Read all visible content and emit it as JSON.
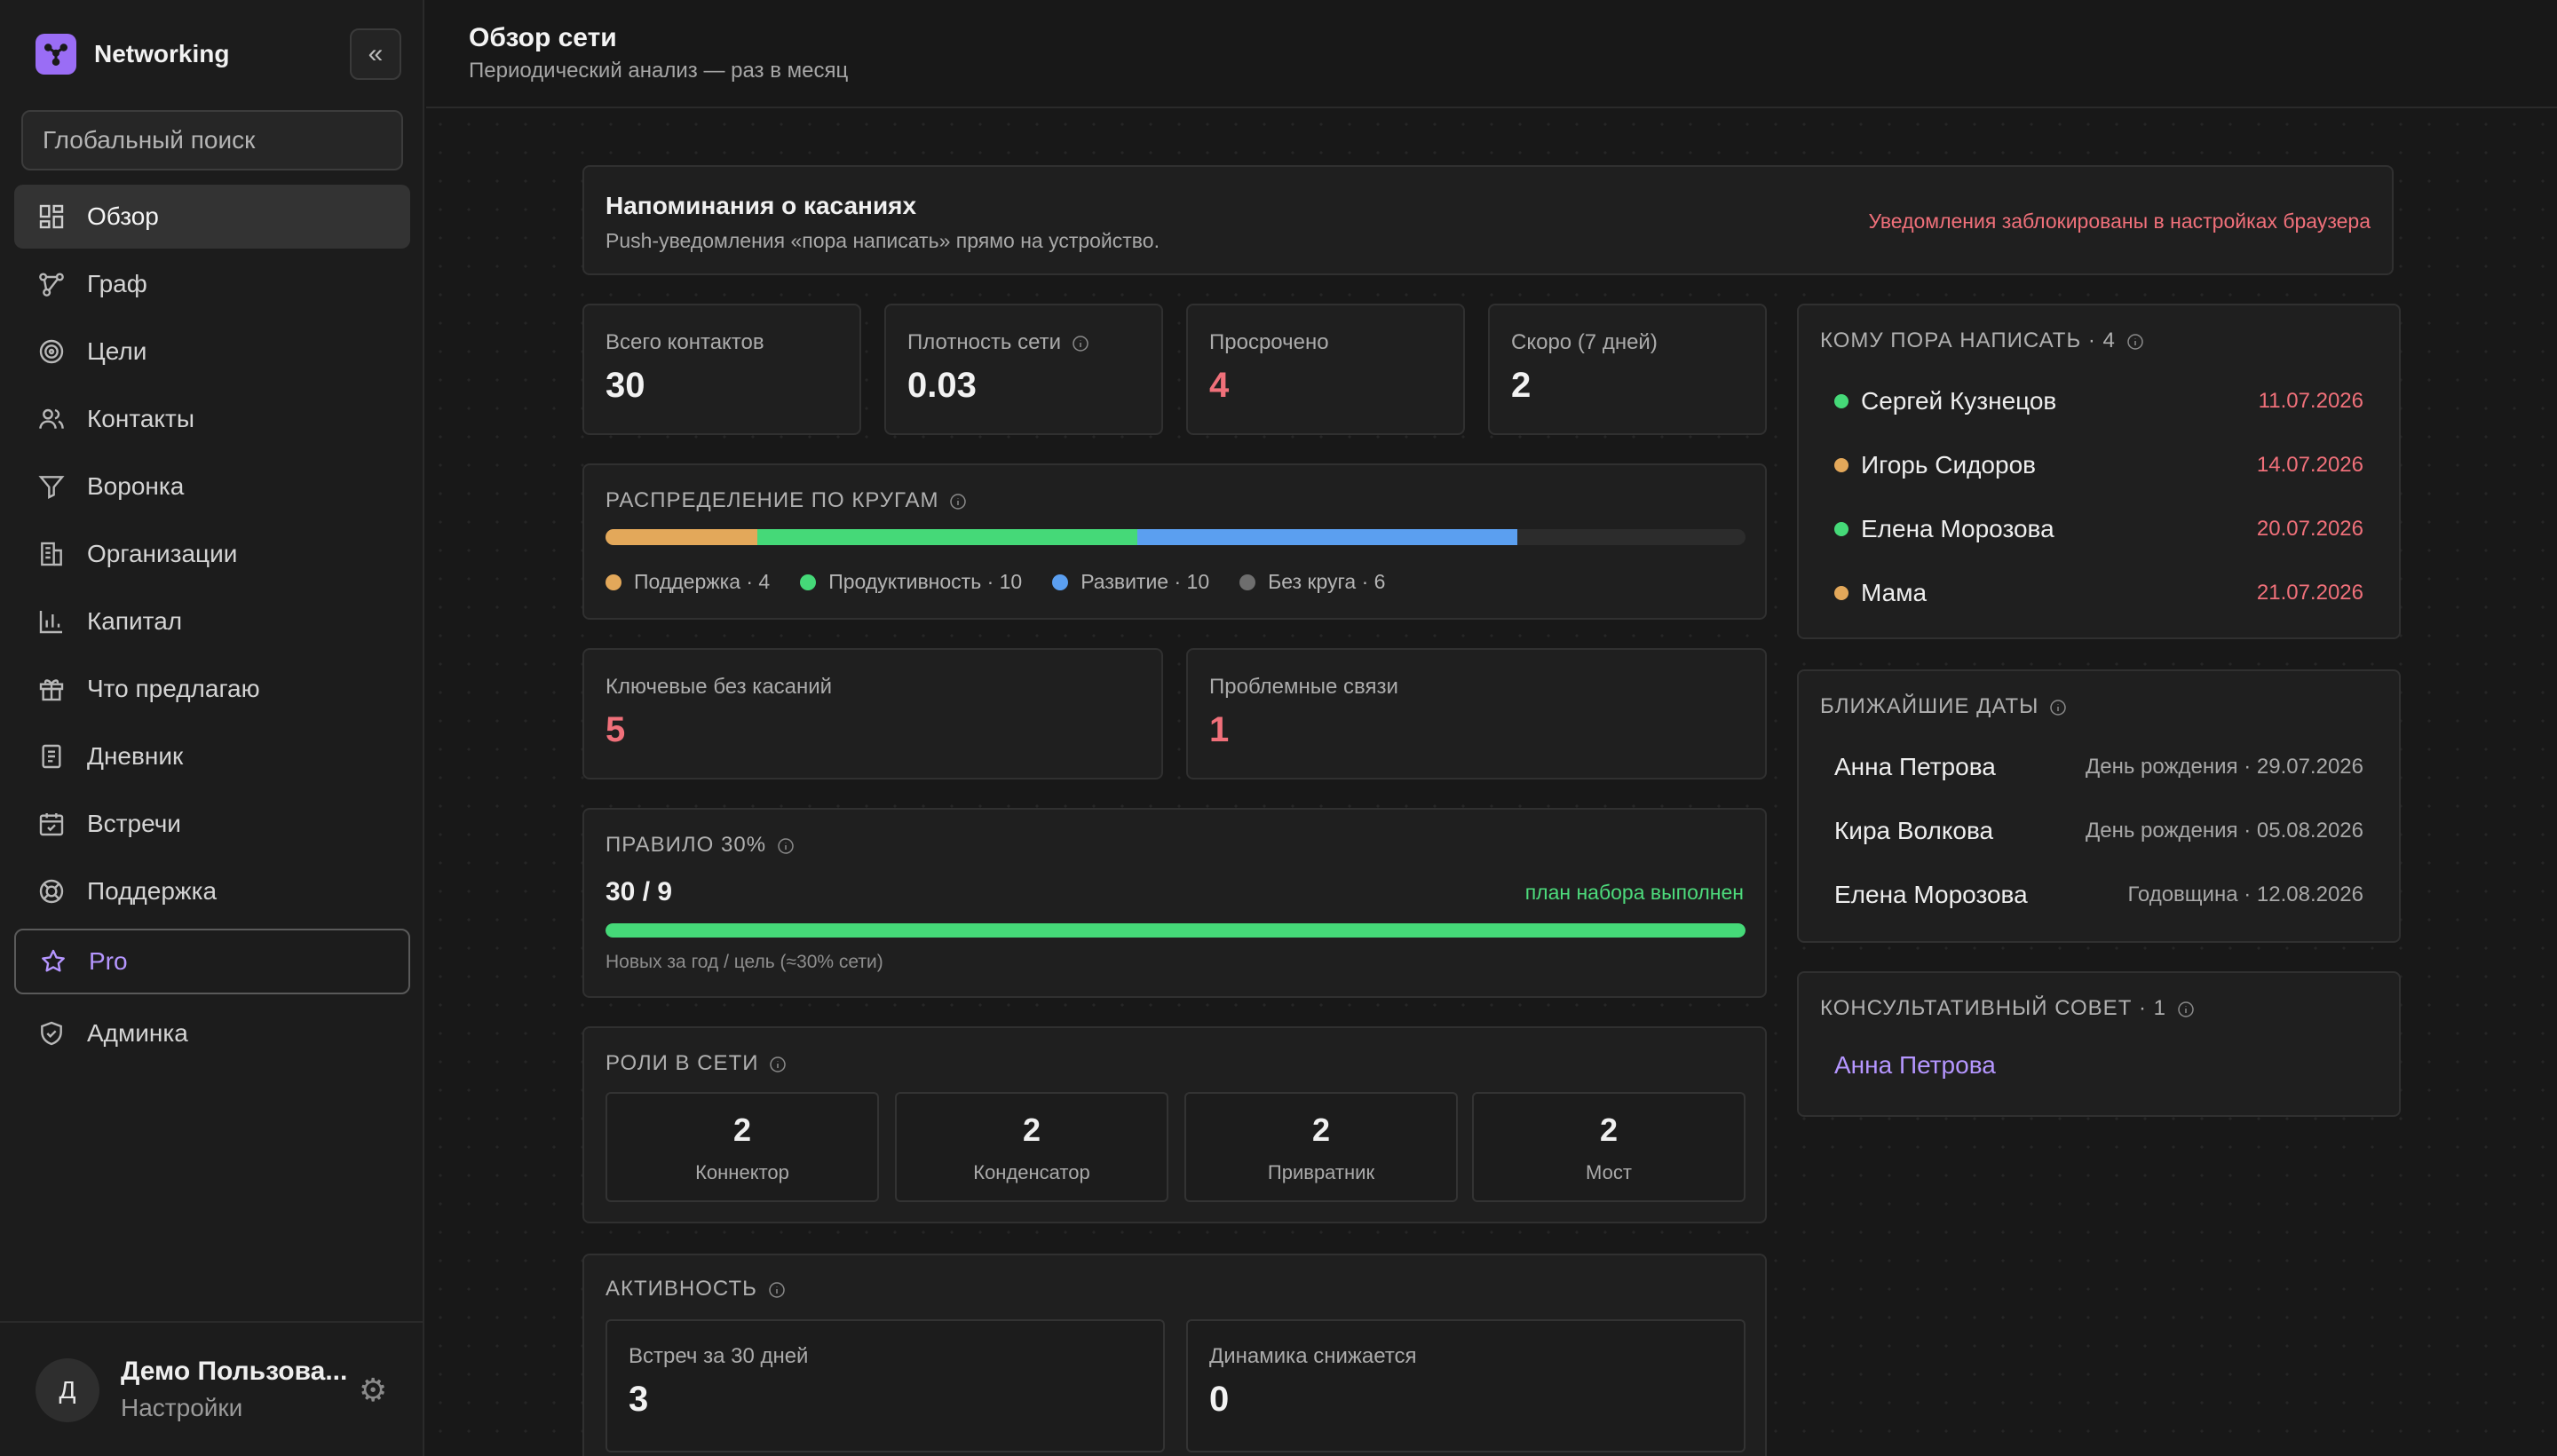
{
  "app": {
    "name": "Networking"
  },
  "search": {
    "placeholder": "Глобальный поиск"
  },
  "nav": {
    "items": [
      {
        "label": "Обзор",
        "icon": "dashboard-icon"
      },
      {
        "label": "Граф",
        "icon": "graph-icon"
      },
      {
        "label": "Цели",
        "icon": "target-icon"
      },
      {
        "label": "Контакты",
        "icon": "users-icon"
      },
      {
        "label": "Воронка",
        "icon": "funnel-icon"
      },
      {
        "label": "Организации",
        "icon": "building-icon"
      },
      {
        "label": "Капитал",
        "icon": "bar-chart-icon"
      },
      {
        "label": "Что предлагаю",
        "icon": "gift-icon"
      },
      {
        "label": "Дневник",
        "icon": "notebook-icon"
      },
      {
        "label": "Встречи",
        "icon": "calendar-check-icon"
      },
      {
        "label": "Поддержка",
        "icon": "lifebuoy-icon"
      },
      {
        "label": "Pro",
        "icon": "star-icon"
      },
      {
        "label": "Админка",
        "icon": "shield-check-icon"
      }
    ]
  },
  "user": {
    "avatar_letter": "Д",
    "name": "Демо Пользова...",
    "settings": "Настройки"
  },
  "header": {
    "title": "Обзор сети",
    "subtitle": "Периодический анализ — раз в месяц"
  },
  "reminders": {
    "title": "Напоминания о касаниях",
    "description": "Push-уведомления «пора написать» прямо на устройство.",
    "status": "Уведомления заблокированы в настройках браузера"
  },
  "stats": {
    "total": {
      "label": "Всего контактов",
      "value": "30"
    },
    "density": {
      "label": "Плотность сети",
      "value": "0.03"
    },
    "overdue": {
      "label": "Просрочено",
      "value": "4"
    },
    "soon": {
      "label": "Скоро (7 дней)",
      "value": "2"
    }
  },
  "circles": {
    "title": "РАСПРЕДЕЛЕНИЕ ПО КРУГАМ",
    "total": 30,
    "segments": [
      {
        "label": "Поддержка · 4",
        "value": 4,
        "color": "#e3a85a"
      },
      {
        "label": "Продуктивность · 10",
        "value": 10,
        "color": "#45d978"
      },
      {
        "label": "Развитие · 10",
        "value": 10,
        "color": "#5b9ff0"
      },
      {
        "label": "Без круга · 6",
        "value": 6,
        "color": "#6e6e6e"
      }
    ]
  },
  "key_no_touch": {
    "label": "Ключевые без касаний",
    "value": "5"
  },
  "problem_links": {
    "label": "Проблемные связи",
    "value": "1"
  },
  "rule30": {
    "title": "ПРАВИЛО 30%",
    "value": "30 / 9",
    "status": "план набора выполнен",
    "caption": "Новых за год / цель (≈30% сети)",
    "progress": 1.0
  },
  "roles": {
    "title": "РОЛИ В СЕТИ",
    "items": [
      {
        "value": "2",
        "name": "Коннектор"
      },
      {
        "value": "2",
        "name": "Конденсатор"
      },
      {
        "value": "2",
        "name": "Привратник"
      },
      {
        "value": "2",
        "name": "Мост"
      }
    ]
  },
  "activity": {
    "title": "АКТИВНОСТЬ",
    "meetings": {
      "label": "Встреч за 30 дней",
      "value": "3"
    },
    "trend": {
      "label": "Динамика снижается",
      "value": "0"
    }
  },
  "to_write": {
    "title": "КОМУ ПОРА НАПИСАТЬ · 4",
    "items": [
      {
        "name": "Сергей Кузнецов",
        "date": "11.07.2026",
        "dot": "#45d978"
      },
      {
        "name": "Игорь Сидоров",
        "date": "14.07.2026",
        "dot": "#e3a85a"
      },
      {
        "name": "Елена Морозова",
        "date": "20.07.2026",
        "dot": "#45d978"
      },
      {
        "name": "Мама",
        "date": "21.07.2026",
        "dot": "#e3a85a"
      }
    ]
  },
  "upcoming": {
    "title": "БЛИЖАЙШИЕ ДАТЫ",
    "items": [
      {
        "name": "Анна Петрова",
        "event": "День рождения · 29.07.2026"
      },
      {
        "name": "Кира Волкова",
        "event": "День рождения · 05.08.2026"
      },
      {
        "name": "Елена Морозова",
        "event": "Годовщина · 12.08.2026"
      }
    ]
  },
  "advisory": {
    "title": "КОНСУЛЬТАТИВНЫЙ СОВЕТ · 1",
    "members": [
      "Анна Петрова"
    ]
  },
  "colors": {
    "accent": "#9a6df5",
    "danger": "#f0707a",
    "success": "#4ddb7c",
    "link": "#b596ff"
  }
}
